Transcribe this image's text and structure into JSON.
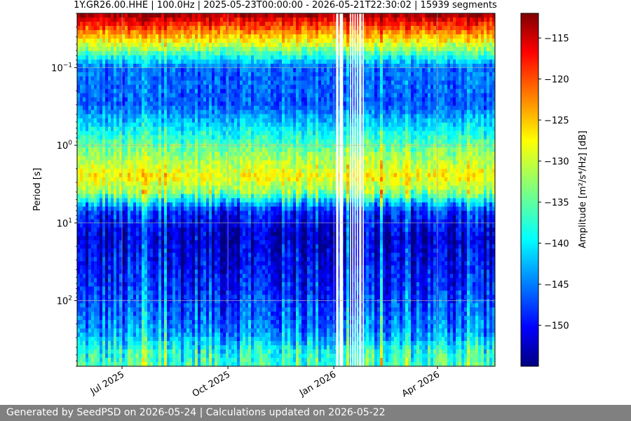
{
  "chart_data": {
    "type": "heatmap",
    "title": "1Y.GR26.00.HHE | 100.0Hz | 2025-05-23T00:00:00 - 2026-05-21T22:30:02 | 15939 segments",
    "xlabel": "",
    "ylabel": "Period [s]",
    "x_range": [
      "2025-05-23",
      "2026-05-21"
    ],
    "x_ticks": [
      {
        "date": "2025-07-01",
        "label": "Jul 2025"
      },
      {
        "date": "2025-10-01",
        "label": "Oct 2025"
      },
      {
        "date": "2026-01-01",
        "label": "Jan 2026"
      },
      {
        "date": "2026-04-01",
        "label": "Apr 2026"
      }
    ],
    "y_scale": "log",
    "y_inverted": true,
    "y_range": [
      0.02,
      700
    ],
    "y_ticks": [
      {
        "value": 0.1,
        "base": "10",
        "exp": "−1"
      },
      {
        "value": 1,
        "base": "10",
        "exp": "0"
      },
      {
        "value": 10,
        "base": "10",
        "exp": "1"
      },
      {
        "value": 100,
        "base": "10",
        "exp": "2"
      }
    ],
    "grid": true,
    "colormap": "jet",
    "colorbar": {
      "label": "Amplitude [m²/s⁴/Hz] [dB]",
      "range": [
        -155,
        -112
      ],
      "ticks": [
        -115,
        -120,
        -125,
        -130,
        -135,
        -140,
        -145,
        -150
      ]
    },
    "data_gaps": [
      [
        "2026-01-03",
        "2026-01-05"
      ],
      [
        "2026-01-06",
        "2026-01-09"
      ],
      [
        "2026-01-15",
        "2026-01-16"
      ],
      [
        "2026-01-17",
        "2026-01-18"
      ],
      [
        "2026-01-19",
        "2026-01-20"
      ],
      [
        "2026-01-21",
        "2026-01-22"
      ],
      [
        "2026-01-23",
        "2026-01-25"
      ],
      [
        "2026-01-26",
        "2026-01-27"
      ]
    ],
    "typical_profile": [
      {
        "period": 0.02,
        "amplitude_db": -113
      },
      {
        "period": 0.05,
        "amplitude_db": -130
      },
      {
        "period": 0.1,
        "amplitude_db": -145
      },
      {
        "period": 0.3,
        "amplitude_db": -146
      },
      {
        "period": 1,
        "amplitude_db": -135
      },
      {
        "period": 2.5,
        "amplitude_db": -128
      },
      {
        "period": 4,
        "amplitude_db": -133
      },
      {
        "period": 7,
        "amplitude_db": -148
      },
      {
        "period": 15,
        "amplitude_db": -152
      },
      {
        "period": 80,
        "amplitude_db": -148
      },
      {
        "period": 250,
        "amplitude_db": -144
      },
      {
        "period": 450,
        "amplitude_db": -138
      },
      {
        "period": 700,
        "amplitude_db": -136
      }
    ]
  },
  "footer": {
    "text": "Generated by SeedPSD on 2026-05-24 | Calculations updated on 2026-05-22"
  }
}
